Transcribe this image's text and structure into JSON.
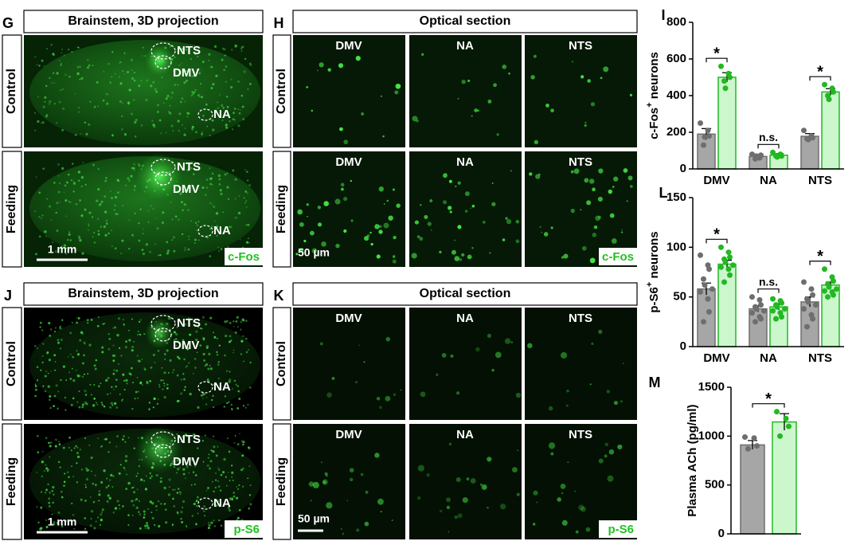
{
  "figure": {
    "top": {
      "projection": {
        "letter": "G",
        "header": "Brainstem, 3D projection",
        "rows": [
          "Control",
          "Feeding"
        ],
        "regions": [
          "NTS",
          "DMV",
          "NA"
        ],
        "scale": "1 mm",
        "stain": "c-Fos"
      },
      "section": {
        "letter": "H",
        "header": "Optical section",
        "rows": [
          "Control",
          "Feeding"
        ],
        "columns": [
          "DMV",
          "NA",
          "NTS"
        ],
        "scale": "50 µm",
        "stain": "c-Fos"
      }
    },
    "bottom": {
      "projection": {
        "letter": "J",
        "header": "Brainstem, 3D projection",
        "rows": [
          "Control",
          "Feeding"
        ],
        "regions": [
          "NTS",
          "DMV",
          "NA"
        ],
        "scale": "1 mm",
        "stain": "p-S6"
      },
      "section": {
        "letter": "K",
        "header": "Optical section",
        "rows": [
          "Control",
          "Feeding"
        ],
        "columns": [
          "DMV",
          "NA",
          "NTS"
        ],
        "scale": "50 µm",
        "stain": "p-S6"
      }
    }
  },
  "chart_data": [
    {
      "type": "bar",
      "letter": "I",
      "ylabel": [
        "c-Fos",
        "+",
        " neurons"
      ],
      "categories": [
        "DMV",
        "NA",
        "NTS"
      ],
      "ylim": [
        0,
        800
      ],
      "yticks": [
        0,
        200,
        400,
        600,
        800
      ],
      "series": [
        {
          "fill": "#a6a6a6",
          "color": "#6e6e6e",
          "values": [
            190,
            68,
            178
          ],
          "errors": [
            30,
            10,
            15
          ],
          "points": [
            [
              250,
              210,
              180,
              130,
              175
            ],
            [
              80,
              60,
              75,
              55,
              70
            ],
            [
              210,
              180,
              170,
              165,
              160
            ]
          ]
        },
        {
          "fill": "#ccf7cc",
          "color": "#22b822",
          "values": [
            500,
            75,
            420
          ],
          "errors": [
            25,
            8,
            18
          ],
          "points": [
            [
              560,
              520,
              500,
              480,
              440
            ],
            [
              90,
              80,
              70,
              70,
              65
            ],
            [
              460,
              440,
              420,
              400,
              380
            ]
          ]
        }
      ],
      "annotations": [
        "*",
        "n.s.",
        "*"
      ]
    },
    {
      "type": "bar",
      "letter": "L",
      "ylabel": [
        "p-S6",
        "+",
        " neurons"
      ],
      "categories": [
        "DMV",
        "NA",
        "NTS"
      ],
      "ylim": [
        0,
        150
      ],
      "yticks": [
        0,
        50,
        100,
        150
      ],
      "series": [
        {
          "fill": "#a6a6a6",
          "color": "#6e6e6e",
          "values": [
            58,
            38,
            45
          ],
          "errors": [
            6,
            3,
            5
          ],
          "points": [
            [
              92,
              82,
              78,
              68,
              62,
              58,
              55,
              48,
              35,
              25
            ],
            [
              50,
              47,
              42,
              40,
              38,
              36,
              34,
              30,
              28,
              25
            ],
            [
              65,
              58,
              52,
              48,
              45,
              42,
              38,
              32,
              28,
              20
            ]
          ]
        },
        {
          "fill": "#ccf7cc",
          "color": "#22b822",
          "values": [
            83,
            40,
            62
          ],
          "errors": [
            4,
            3,
            3
          ],
          "points": [
            [
              100,
              95,
              90,
              88,
              85,
              82,
              80,
              78,
              72,
              65
            ],
            [
              48,
              46,
              44,
              42,
              40,
              38,
              36,
              34,
              30,
              28
            ],
            [
              78,
              70,
              66,
              63,
              60,
              58,
              56,
              55,
              52,
              50
            ]
          ]
        }
      ],
      "annotations": [
        "*",
        "n.s.",
        "*"
      ]
    },
    {
      "type": "bar",
      "letter": "M",
      "ylabel": [
        "Plasma ACh (pg/ml)"
      ],
      "ylim": [
        0,
        1500
      ],
      "yticks": [
        0,
        500,
        1000,
        1500
      ],
      "series": [
        {
          "fill": "#a6a6a6",
          "color": "#6e6e6e",
          "values": [
            910
          ],
          "errors": [
            45
          ],
          "points": [
            [
              990,
              980,
              900,
              870
            ]
          ]
        },
        {
          "fill": "#ccf7cc",
          "color": "#22b822",
          "values": [
            1145
          ],
          "errors": [
            85
          ],
          "points": [
            [
              1250,
              1180,
              1100,
              1000
            ]
          ]
        }
      ],
      "annotations": [
        "*"
      ]
    }
  ]
}
